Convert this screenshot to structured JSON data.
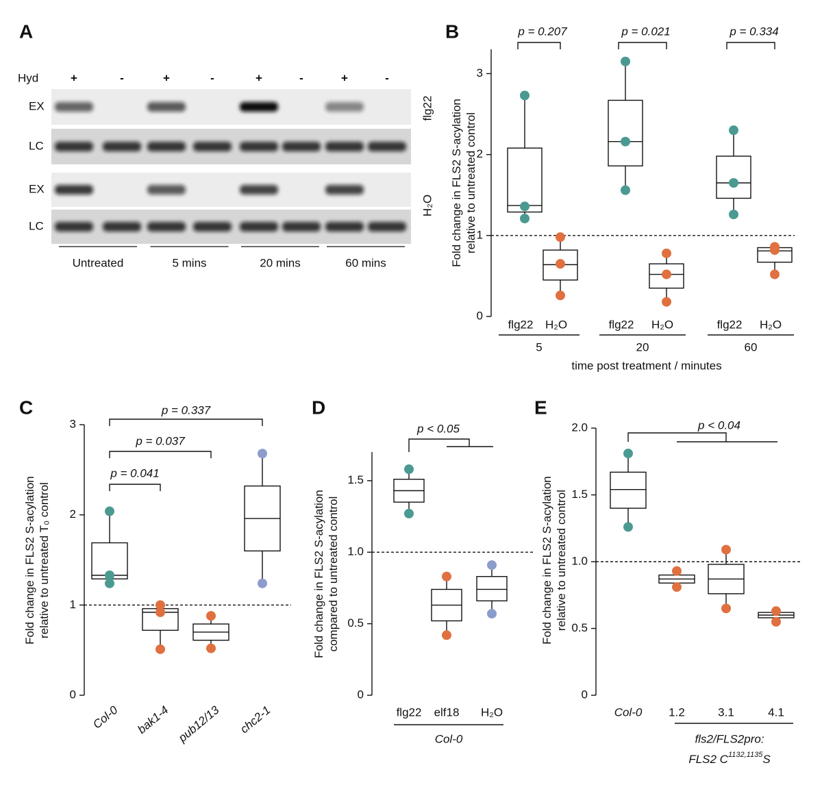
{
  "blot": {
    "label": "A",
    "hyd_label": "Hyd",
    "hyd": [
      "+",
      "-",
      "+",
      "-",
      "+",
      "-",
      "+",
      "-"
    ],
    "rows": [
      "EX",
      "LC",
      "EX",
      "LC"
    ],
    "treatments": [
      "flg22",
      "H₂O"
    ],
    "timepoints": [
      "Untreated",
      "5 mins",
      "20 mins",
      "60 mins"
    ]
  },
  "chart_data": [
    {
      "type": "box",
      "label": "B",
      "ylim": [
        0,
        3.3
      ],
      "yticks": [
        0,
        1,
        2,
        3
      ],
      "reference_line": 1,
      "ylabel": [
        "Fold change in FLS2 S-acylation",
        "relative to untreated control"
      ],
      "xlabel": "time post treatment / minutes",
      "categories": [
        "flg22",
        "H₂O",
        "flg22",
        "H₂O",
        "flg22",
        "H₂O"
      ],
      "groups": [
        "5",
        "20",
        "60"
      ],
      "annotations": [
        "p = 0.207",
        "p = 0.021",
        "p = 0.334"
      ],
      "boxes": [
        {
          "color": "#4a9a92",
          "whisker_low": 1.21,
          "q1": 1.29,
          "median": 1.37,
          "q3": 2.08,
          "whisker_high": 2.73,
          "points": [
            2.73,
            1.36,
            1.21
          ]
        },
        {
          "color": "#e07040",
          "whisker_low": 0.26,
          "q1": 0.45,
          "median": 0.64,
          "q3": 0.82,
          "whisker_high": 0.98,
          "points": [
            0.98,
            0.65,
            0.26
          ]
        },
        {
          "color": "#4a9a92",
          "whisker_low": 1.56,
          "q1": 1.86,
          "median": 2.16,
          "q3": 2.67,
          "whisker_high": 3.15,
          "points": [
            3.15,
            2.16,
            1.56
          ]
        },
        {
          "color": "#e07040",
          "whisker_low": 0.18,
          "q1": 0.35,
          "median": 0.52,
          "q3": 0.65,
          "whisker_high": 0.78,
          "points": [
            0.78,
            0.52,
            0.18
          ]
        },
        {
          "color": "#4a9a92",
          "whisker_low": 1.26,
          "q1": 1.46,
          "median": 1.65,
          "q3": 1.98,
          "whisker_high": 2.3,
          "points": [
            2.3,
            1.65,
            1.26
          ]
        },
        {
          "color": "#e07040",
          "whisker_low": 0.52,
          "q1": 0.67,
          "median": 0.81,
          "q3": 0.85,
          "whisker_high": 0.87,
          "points": [
            0.86,
            0.82,
            0.52
          ]
        }
      ]
    },
    {
      "type": "box",
      "label": "C",
      "ylim": [
        0,
        3
      ],
      "yticks": [
        0,
        1,
        2,
        3
      ],
      "reference_line": 1,
      "ylabel": [
        "Fold change in FLS2 S-acylation",
        "relative to untreated T₀ control"
      ],
      "categories": [
        "Col-0",
        "bak1-4",
        "pub12/13",
        "chc2-1"
      ],
      "annotations": [
        "p = 0.337",
        "p = 0.037",
        "p = 0.041"
      ],
      "boxes": [
        {
          "color": "#4a9a92",
          "whisker_low": 1.24,
          "q1": 1.29,
          "median": 1.33,
          "q3": 1.69,
          "whisker_high": 2.04,
          "points": [
            2.04,
            1.33,
            1.24
          ]
        },
        {
          "color": "#e07040",
          "whisker_low": 0.51,
          "q1": 0.72,
          "median": 0.92,
          "q3": 0.96,
          "whisker_high": 1.0,
          "points": [
            1.0,
            0.92,
            0.51
          ]
        },
        {
          "color": "#e07040",
          "whisker_low": 0.52,
          "q1": 0.61,
          "median": 0.7,
          "q3": 0.79,
          "whisker_high": 0.88,
          "points": [
            0.88,
            0.52
          ]
        },
        {
          "color": "#8c9ccc",
          "whisker_low": 1.24,
          "q1": 1.6,
          "median": 1.96,
          "q3": 2.32,
          "whisker_high": 2.68,
          "points": [
            2.68,
            1.24
          ]
        }
      ]
    },
    {
      "type": "box",
      "label": "D",
      "ylim": [
        0,
        1.7
      ],
      "yticks": [
        0,
        0.5,
        {
          "value": 1,
          "label": "1.0"
        },
        1.5
      ],
      "reference_line": 1,
      "ylabel": [
        "Fold change in FLS2 S-acylation",
        "compared to untreated control"
      ],
      "categories": [
        "flg22",
        "elf18",
        "H₂O"
      ],
      "group_label": [
        "Col-0"
      ],
      "annotations": [
        "p < 0.05"
      ],
      "boxes": [
        {
          "color": "#4a9a92",
          "whisker_low": 1.27,
          "q1": 1.35,
          "median": 1.43,
          "q3": 1.51,
          "whisker_high": 1.58,
          "points": [
            1.58,
            1.27
          ]
        },
        {
          "color": "#e07040",
          "whisker_low": 0.42,
          "q1": 0.52,
          "median": 0.63,
          "q3": 0.74,
          "whisker_high": 0.83,
          "points": [
            0.83,
            0.42
          ]
        },
        {
          "color": "#8c9ccc",
          "whisker_low": 0.57,
          "q1": 0.66,
          "median": 0.74,
          "q3": 0.83,
          "whisker_high": 0.91,
          "points": [
            0.91,
            0.57
          ]
        }
      ]
    },
    {
      "type": "box",
      "label": "E",
      "ylim": [
        0,
        2
      ],
      "yticks": [
        0,
        0.5,
        {
          "value": 1,
          "label": "1.0"
        },
        1.5,
        {
          "value": 2,
          "label": "2.0"
        }
      ],
      "reference_line": 1,
      "ylabel": [
        "Fold change in FLS2 S-acylation",
        "relative to untreated control"
      ],
      "categories": [
        "Col-0",
        "1.2",
        "3.1",
        "4.1"
      ],
      "group_label": [
        "fls2/FLS2pro:",
        "FLS2 C",
        "1132,1135",
        "S"
      ],
      "annotations": [
        "p < 0.04"
      ],
      "boxes": [
        {
          "color": "#4a9a92",
          "whisker_low": 1.26,
          "q1": 1.4,
          "median": 1.54,
          "q3": 1.67,
          "whisker_high": 1.81,
          "points": [
            1.81,
            1.26
          ]
        },
        {
          "color": "#e07040",
          "whisker_low": 0.81,
          "q1": 0.84,
          "median": 0.87,
          "q3": 0.9,
          "whisker_high": 0.93,
          "points": [
            0.93,
            0.81
          ]
        },
        {
          "color": "#e07040",
          "whisker_low": 0.65,
          "q1": 0.76,
          "median": 0.87,
          "q3": 0.98,
          "whisker_high": 1.09,
          "points": [
            1.09,
            0.65
          ]
        },
        {
          "color": "#e07040",
          "whisker_low": 0.55,
          "q1": 0.58,
          "median": 0.6,
          "q3": 0.62,
          "whisker_high": 0.63,
          "points": [
            0.63,
            0.55
          ]
        }
      ]
    }
  ]
}
